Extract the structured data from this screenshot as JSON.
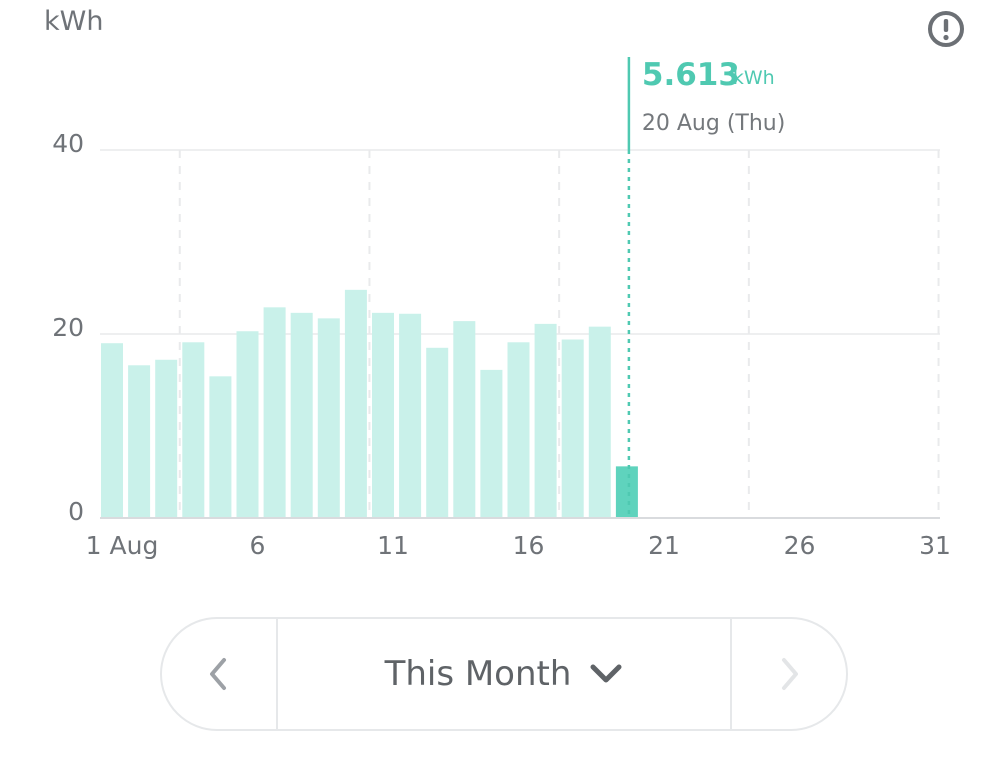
{
  "chart_data": {
    "type": "bar",
    "y_unit": "kWh",
    "ylim": [
      0,
      40
    ],
    "y_ticks": [
      "0",
      "20",
      "40"
    ],
    "x_tick_labels": [
      {
        "day": 1,
        "label": "1 Aug"
      },
      {
        "day": 6,
        "label": "6"
      },
      {
        "day": 11,
        "label": "11"
      },
      {
        "day": 16,
        "label": "16"
      },
      {
        "day": 21,
        "label": "21"
      },
      {
        "day": 26,
        "label": "26"
      },
      {
        "day": 31,
        "label": "31"
      }
    ],
    "days_in_month": 31,
    "days": [
      1,
      2,
      3,
      4,
      5,
      6,
      7,
      8,
      9,
      10,
      11,
      12,
      13,
      14,
      15,
      16,
      17,
      18,
      19,
      20
    ],
    "values": [
      19.0,
      16.6,
      17.2,
      19.1,
      15.4,
      20.3,
      22.9,
      22.3,
      21.7,
      24.8,
      22.3,
      22.2,
      18.5,
      21.4,
      16.1,
      19.1,
      21.1,
      19.4,
      20.8,
      5.613
    ],
    "selected": {
      "day": 20,
      "value": "5.613",
      "unit": "kWh",
      "date_label": "20 Aug (Thu)"
    },
    "grid": true,
    "colors": {
      "bar": "#c9f1ea",
      "bar_selected": "#5fd3bd",
      "accent": "#4fc9b1",
      "grid": "#e9eaec",
      "axis": "#d9dbde"
    }
  },
  "header": {
    "unit_label": "kWh",
    "info_icon": "info-icon"
  },
  "period_selector": {
    "label": "This Month",
    "prev_icon": "chevron-left-icon",
    "next_icon": "chevron-right-icon",
    "dropdown_icon": "chevron-down-icon"
  }
}
